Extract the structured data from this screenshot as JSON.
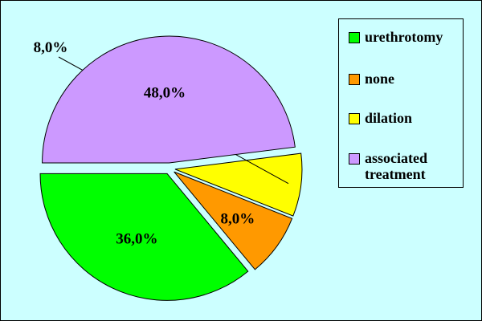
{
  "chart_data": {
    "type": "pie",
    "categories": [
      "urethrotomy",
      "none",
      "dilation",
      "associated\ntreatment"
    ],
    "values": [
      36.0,
      8.0,
      8.0,
      48.0
    ],
    "labels": [
      "36,0%",
      "8,0%",
      "8,0%",
      "48,0%"
    ],
    "colors": [
      "#00ff00",
      "#ff9900",
      "#ffff00",
      "#cc99ff"
    ],
    "exploded": true,
    "legend_position": "right",
    "title": ""
  }
}
